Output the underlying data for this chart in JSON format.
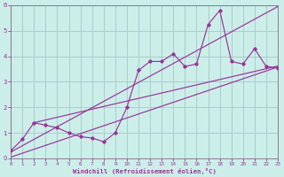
{
  "xlabel": "Windchill (Refroidissement éolien,°C)",
  "bg_color": "#cceee8",
  "line_color": "#993399",
  "grid_color": "#aacccc",
  "spine_color": "#886688",
  "xlim": [
    0,
    23
  ],
  "ylim": [
    0,
    6
  ],
  "xticks": [
    0,
    1,
    2,
    3,
    4,
    5,
    6,
    7,
    8,
    9,
    10,
    11,
    12,
    13,
    14,
    15,
    16,
    17,
    18,
    19,
    20,
    21,
    22,
    23
  ],
  "yticks": [
    0,
    1,
    2,
    3,
    4,
    5,
    6
  ],
  "data_x": [
    0,
    1,
    2,
    3,
    4,
    5,
    6,
    7,
    8,
    9,
    10,
    11,
    12,
    13,
    14,
    15,
    16,
    17,
    18,
    19,
    20,
    21,
    22,
    23
  ],
  "data_y": [
    0.3,
    0.75,
    1.4,
    1.3,
    1.2,
    1.0,
    0.85,
    0.8,
    0.65,
    1.0,
    2.0,
    3.45,
    3.8,
    3.8,
    4.1,
    3.6,
    3.7,
    5.25,
    5.8,
    3.8,
    3.7,
    4.3,
    3.6,
    3.55
  ],
  "trend_lines": [
    {
      "x": [
        0,
        23
      ],
      "y": [
        0.25,
        5.95
      ]
    },
    {
      "x": [
        2,
        23
      ],
      "y": [
        1.4,
        3.62
      ]
    },
    {
      "x": [
        0,
        23
      ],
      "y": [
        0.05,
        3.58
      ]
    }
  ]
}
